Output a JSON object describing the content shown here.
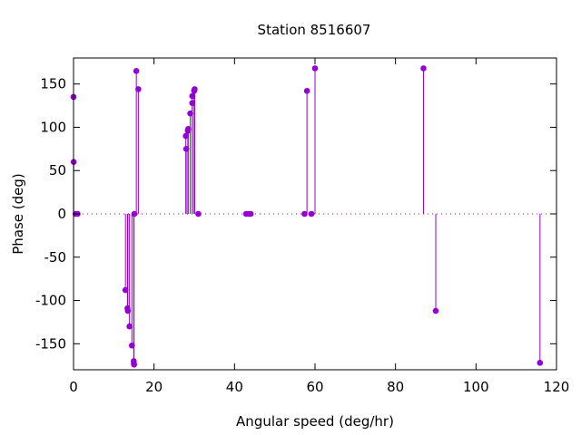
{
  "chart_data": {
    "type": "scatter",
    "style": "impulses-with-points",
    "title": "Station 8516607",
    "xlabel": "Angular speed (deg/hr)",
    "ylabel": "Phase (deg)",
    "xlim": [
      0,
      120
    ],
    "ylim": [
      -180,
      180
    ],
    "xticks": [
      "0",
      "20",
      "40",
      "60",
      "80",
      "100",
      "120"
    ],
    "yticks": [
      "-150",
      "-100",
      "-50",
      "0",
      "50",
      "100",
      "150"
    ],
    "grid": false,
    "zero_line": "dotted",
    "legend": "none",
    "series_color": "#9400d3",
    "x": [
      0.0,
      0.04,
      0.5,
      1.0,
      12.9,
      13.4,
      13.5,
      13.9,
      14.5,
      14.96,
      15.0,
      15.04,
      15.1,
      15.6,
      16.1,
      27.9,
      28.0,
      28.4,
      28.5,
      29.0,
      29.5,
      29.5,
      29.96,
      30.0,
      30.1,
      31.0,
      42.9,
      43.5,
      44.0,
      57.4,
      58.0,
      59.1,
      60.0,
      86.95,
      90.0,
      115.9
    ],
    "y": [
      135,
      60,
      0,
      0,
      -88,
      -109,
      -112,
      -130,
      -152,
      -170,
      -173,
      -174,
      0,
      165,
      144,
      90,
      75,
      96,
      98,
      116,
      136,
      128,
      142,
      143,
      144,
      0,
      0,
      0,
      0,
      0,
      142,
      0,
      168,
      168,
      -112,
      -172
    ]
  }
}
